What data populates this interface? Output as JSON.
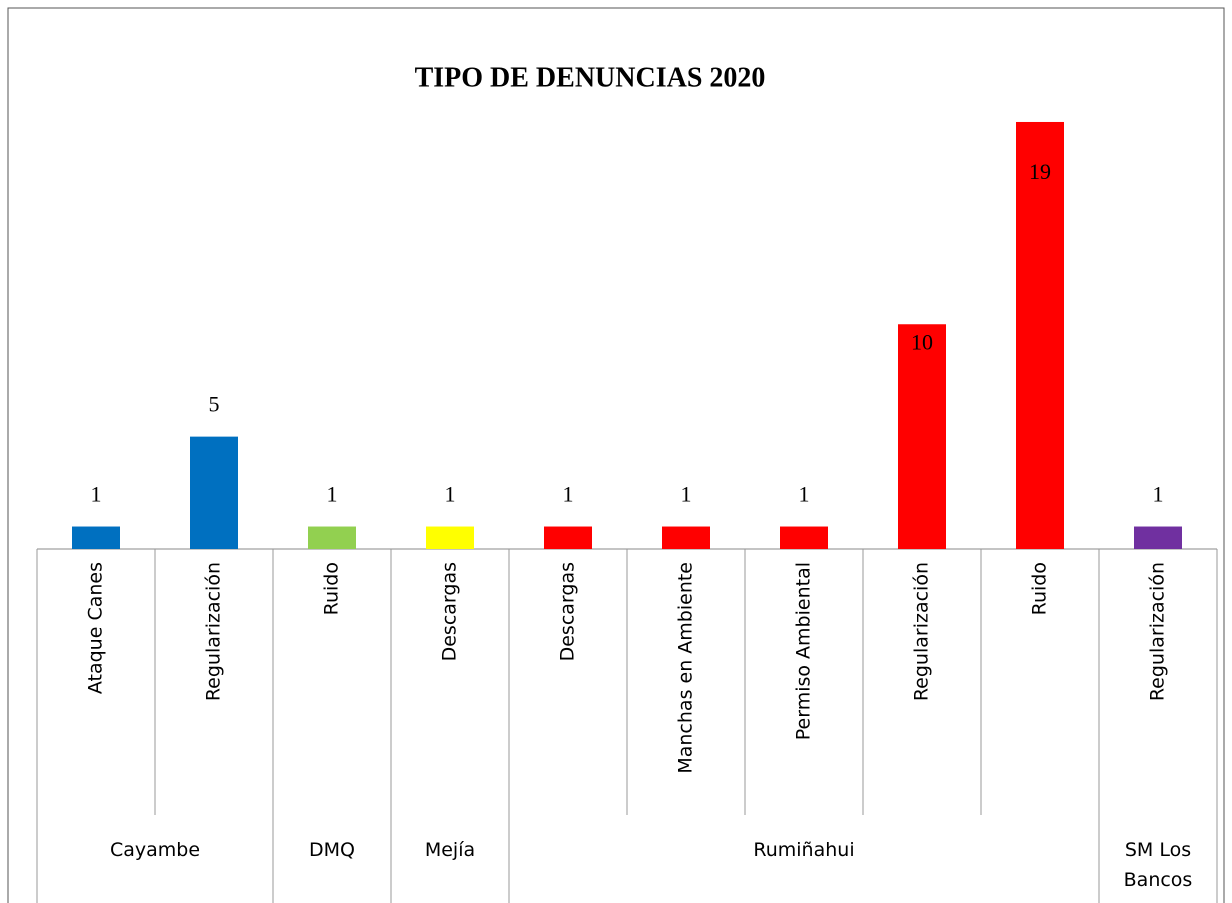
{
  "chart_data": {
    "type": "bar",
    "title": "TIPO DE DENUNCIAS 2020",
    "categories": [
      "Ataque Canes",
      "Regularización",
      "Ruido",
      "Descargas",
      "Descargas",
      "Manchas en Ambiente",
      "Permiso Ambiental",
      "Regularización",
      "Ruido",
      "Regularización"
    ],
    "values": [
      1,
      5,
      1,
      1,
      1,
      1,
      1,
      10,
      19,
      1
    ],
    "colors": [
      "#0070c0",
      "#0070c0",
      "#92d050",
      "#ffff00",
      "#ff0000",
      "#ff0000",
      "#ff0000",
      "#ff0000",
      "#ff0000",
      "#7030a0"
    ],
    "groups": [
      {
        "name": "Cayambe",
        "size": 2
      },
      {
        "name": "DMQ",
        "size": 1
      },
      {
        "name": "Mejía",
        "size": 1
      },
      {
        "name": "Rumiñahui",
        "size": 5
      },
      {
        "name": "SM Los Bancos",
        "size": 1
      }
    ],
    "ylim": [
      0,
      20
    ]
  }
}
